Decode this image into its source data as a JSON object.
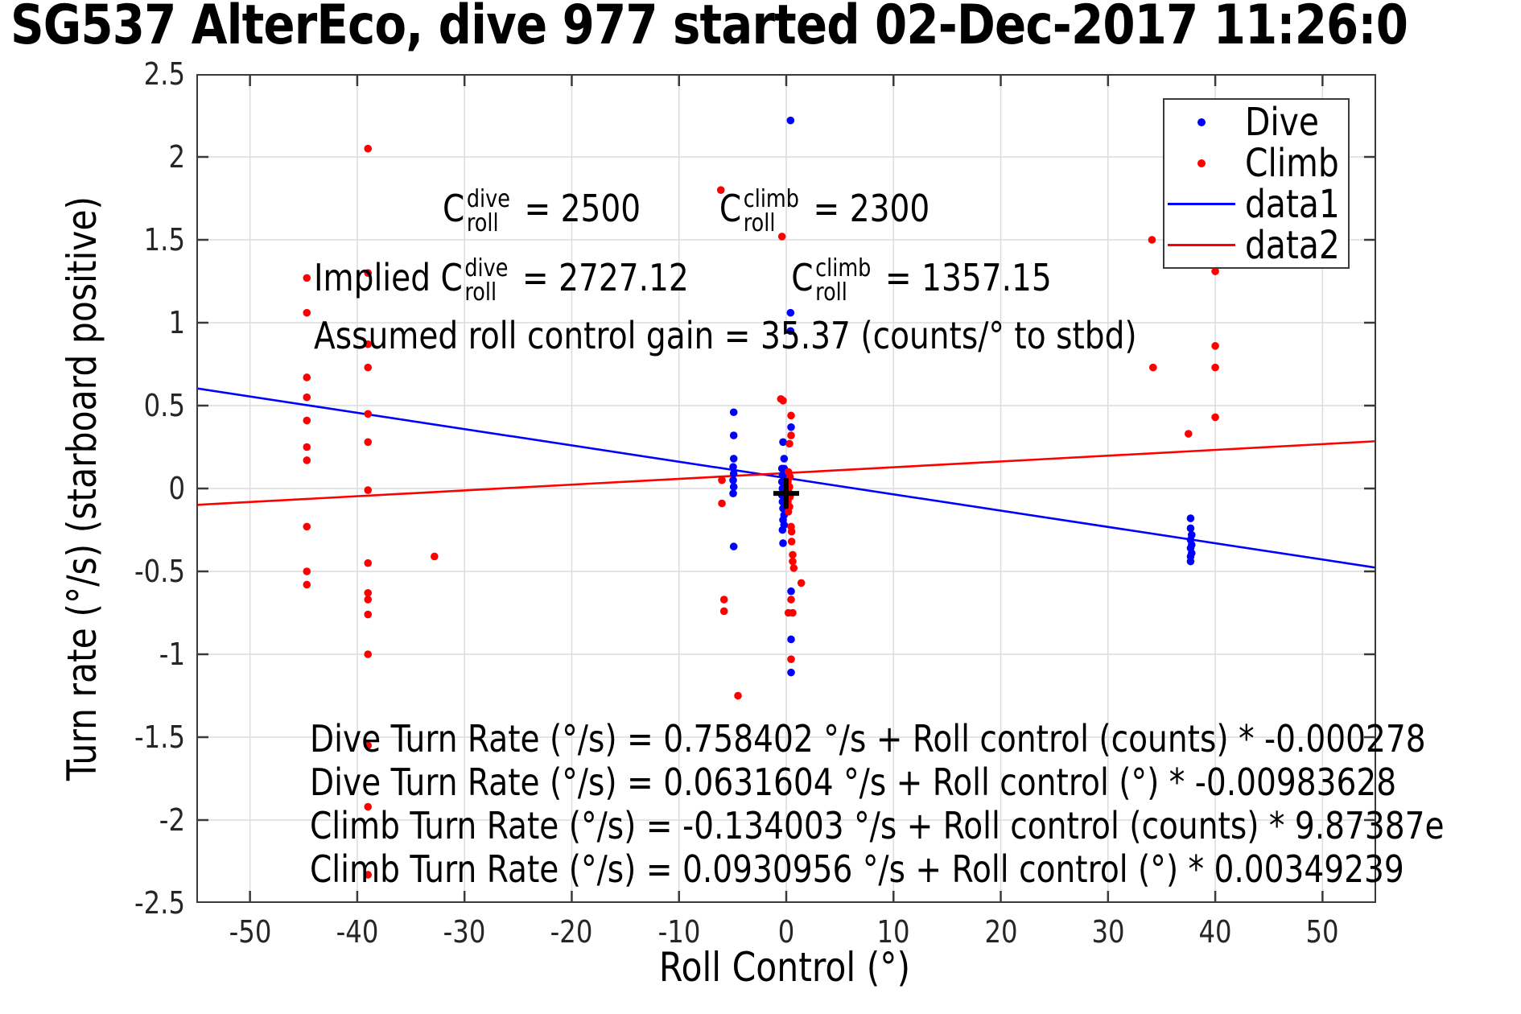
{
  "figure": {
    "title": "SG537 AlterEco, dive 977 started 02-Dec-2017 11:26:0"
  },
  "colors": {
    "dive_blue": "#0000ff",
    "climb_red": "#ff0000",
    "axis": "#3a3a3a",
    "grid": "#dcdcdc",
    "tick_label": "#262626",
    "origin_marker": "#000000",
    "background": "#ffffff"
  },
  "annotations": {
    "cdive": {
      "base": "C",
      "sup": "dive",
      "sub": "roll",
      "value": " = 2500"
    },
    "cclimb": {
      "base": "C",
      "sup": "climb",
      "sub": "roll",
      "value": " = 2300"
    },
    "implied_prefix": "Implied ",
    "implied_cdive": {
      "base": "C",
      "sup": "dive",
      "sub": "roll",
      "value": " = 2727.12"
    },
    "implied_cclimb": {
      "base": "C",
      "sup": "climb",
      "sub": "roll",
      "value": " = 1357.15"
    },
    "gain_line": "Assumed roll control gain = 35.37 (counts/° to stbd)",
    "equations": [
      "Dive Turn Rate (°/s) = 0.758402 °/s + Roll control (counts) * -0.000278",
      "Dive Turn Rate (°/s) = 0.0631604 °/s + Roll control (°) * -0.00983628",
      "Climb Turn Rate (°/s) = -0.134003 °/s + Roll control (counts) * 9.87387e",
      "Climb Turn Rate (°/s) = 0.0930956 °/s + Roll control (°) * 0.00349239"
    ]
  },
  "chart_data": {
    "type": "scatter",
    "title": "SG537 AlterEco, dive 977 started 02-Dec-2017 11:26:0",
    "xlabel": "Roll Control (°)",
    "ylabel": "Turn rate (°/s) (starboard positive)",
    "xlim": [
      -55,
      55
    ],
    "ylim": [
      -2.5,
      2.5
    ],
    "xticks": [
      -50,
      -40,
      -30,
      -20,
      -10,
      0,
      10,
      20,
      30,
      40,
      50
    ],
    "yticks": [
      -2.5,
      -2,
      -1.5,
      -1,
      -0.5,
      0,
      0.5,
      1,
      1.5,
      2,
      2.5
    ],
    "grid": true,
    "legend_position": "top-right",
    "legend_entries": [
      {
        "label": "Dive",
        "kind": "dot",
        "color": "#0000ff"
      },
      {
        "label": "Climb",
        "kind": "dot",
        "color": "#ff0000"
      },
      {
        "label": "data1",
        "kind": "line",
        "color": "#0000ff"
      },
      {
        "label": "data2",
        "kind": "line",
        "color": "#ff0000"
      }
    ],
    "series": [
      {
        "name": "Dive",
        "kind": "scatter",
        "color": "#0000ff",
        "points": [
          [
            -4.9,
            0.46
          ],
          [
            -4.9,
            0.32
          ],
          [
            -4.9,
            0.18
          ],
          [
            -4.95,
            0.13
          ],
          [
            -4.9,
            0.09
          ],
          [
            -4.95,
            0.05
          ],
          [
            -4.9,
            0.01
          ],
          [
            -4.95,
            -0.03
          ],
          [
            -4.9,
            -0.35
          ],
          [
            0.4,
            2.22
          ],
          [
            0.4,
            1.06
          ],
          [
            0.4,
            0.95
          ],
          [
            0.45,
            0.37
          ],
          [
            -0.3,
            0.28
          ],
          [
            -0.2,
            0.18
          ],
          [
            -0.4,
            0.12
          ],
          [
            -0.2,
            0.12
          ],
          [
            -0.35,
            0.08
          ],
          [
            -0.15,
            0.08
          ],
          [
            -0.4,
            0.04
          ],
          [
            -0.2,
            0.04
          ],
          [
            -0.35,
            0.0
          ],
          [
            -0.15,
            0.0
          ],
          [
            -0.4,
            -0.04
          ],
          [
            -0.2,
            -0.04
          ],
          [
            -0.35,
            -0.08
          ],
          [
            -0.15,
            -0.08
          ],
          [
            -0.3,
            -0.12
          ],
          [
            -0.2,
            -0.16
          ],
          [
            -0.3,
            -0.19
          ],
          [
            -0.2,
            -0.22
          ],
          [
            -0.35,
            -0.25
          ],
          [
            -0.3,
            -0.33
          ],
          [
            0.45,
            -0.62
          ],
          [
            0.45,
            -0.91
          ],
          [
            0.45,
            -1.11
          ],
          [
            37.7,
            -0.18
          ],
          [
            37.7,
            -0.24
          ],
          [
            37.8,
            -0.28
          ],
          [
            37.7,
            -0.31
          ],
          [
            37.8,
            -0.34
          ],
          [
            37.7,
            -0.36
          ],
          [
            37.8,
            -0.39
          ],
          [
            37.7,
            -0.41
          ],
          [
            37.7,
            -0.44
          ]
        ]
      },
      {
        "name": "Climb",
        "kind": "scatter",
        "color": "#ff0000",
        "points": [
          [
            -44.7,
            1.27
          ],
          [
            -44.7,
            1.06
          ],
          [
            -44.7,
            0.67
          ],
          [
            -44.7,
            0.55
          ],
          [
            -44.7,
            0.41
          ],
          [
            -44.7,
            0.25
          ],
          [
            -44.7,
            0.17
          ],
          [
            -44.7,
            -0.23
          ],
          [
            -44.7,
            -0.5
          ],
          [
            -44.7,
            -0.58
          ],
          [
            -39.0,
            2.05
          ],
          [
            -39.0,
            1.3
          ],
          [
            -39.0,
            0.87
          ],
          [
            -39.0,
            0.73
          ],
          [
            -39.0,
            0.45
          ],
          [
            -39.0,
            0.28
          ],
          [
            -39.0,
            -0.01
          ],
          [
            -39.0,
            -0.45
          ],
          [
            -39.0,
            -0.63
          ],
          [
            -39.0,
            -0.67
          ],
          [
            -39.0,
            -0.76
          ],
          [
            -39.0,
            -1.0
          ],
          [
            -39.0,
            -1.55
          ],
          [
            -39.0,
            -1.92
          ],
          [
            -39.0,
            -2.33
          ],
          [
            -32.8,
            -0.41
          ],
          [
            -6.1,
            1.8
          ],
          [
            -6.0,
            0.05
          ],
          [
            -6.0,
            -0.09
          ],
          [
            -5.8,
            -0.67
          ],
          [
            -5.8,
            -0.74
          ],
          [
            -4.5,
            -1.25
          ],
          [
            -0.4,
            1.52
          ],
          [
            -0.5,
            0.54
          ],
          [
            -0.3,
            0.53
          ],
          [
            0.45,
            0.44
          ],
          [
            0.45,
            0.32
          ],
          [
            0.3,
            0.27
          ],
          [
            0.2,
            0.1
          ],
          [
            0.35,
            0.07
          ],
          [
            0.15,
            0.04
          ],
          [
            0.3,
            0.01
          ],
          [
            0.2,
            -0.02
          ],
          [
            0.35,
            -0.05
          ],
          [
            0.15,
            -0.08
          ],
          [
            0.3,
            -0.11
          ],
          [
            0.2,
            -0.14
          ],
          [
            0.45,
            -0.23
          ],
          [
            0.5,
            -0.26
          ],
          [
            0.5,
            -0.32
          ],
          [
            0.6,
            -0.4
          ],
          [
            0.6,
            -0.44
          ],
          [
            0.7,
            -0.48
          ],
          [
            1.4,
            -0.57
          ],
          [
            0.45,
            -0.67
          ],
          [
            0.2,
            -0.75
          ],
          [
            0.6,
            -0.75
          ],
          [
            0.45,
            -1.03
          ],
          [
            34.1,
            1.5
          ],
          [
            40.0,
            1.31
          ],
          [
            40.0,
            0.86
          ],
          [
            34.2,
            0.73
          ],
          [
            40.0,
            0.73
          ],
          [
            40.0,
            0.43
          ],
          [
            37.5,
            0.33
          ]
        ]
      },
      {
        "name": "data1",
        "kind": "line",
        "color": "#0000ff",
        "intercept": 0.0631604,
        "slope": -0.00983628
      },
      {
        "name": "data2",
        "kind": "line",
        "color": "#ff0000",
        "intercept": 0.0930956,
        "slope": 0.00349239
      }
    ],
    "origin_marker": {
      "x": 0,
      "y": -0.03
    }
  }
}
